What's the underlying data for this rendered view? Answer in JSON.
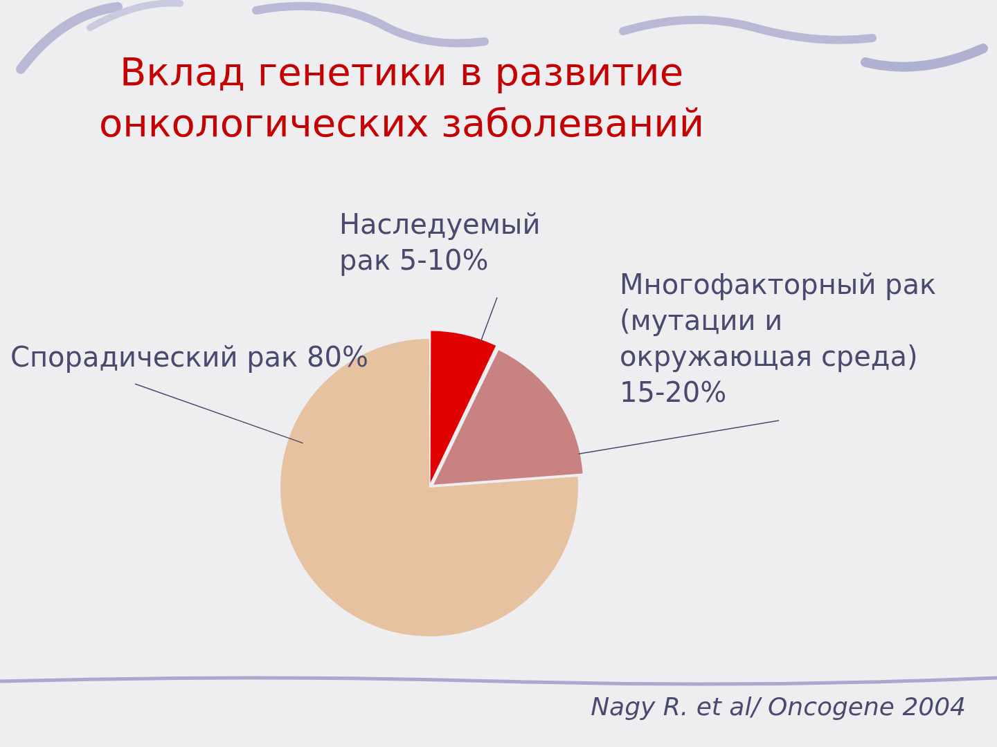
{
  "chart_data": {
    "type": "pie",
    "title": "Вклад генетики в развитие\nонкологических заболеваний",
    "categories": [
      "Спорадический рак 80%",
      "Наследуемый\nрак 5-10%",
      "Многофакторный рак\n(мутации и\nокружающая среда)\n15-20%"
    ],
    "values": [
      80,
      7.5,
      17.5
    ],
    "colors": [
      "#e6c2a0",
      "#e00000",
      "#c98282"
    ],
    "annotations": [
      "Nagy R. et al/ Oncogene 2004"
    ]
  }
}
